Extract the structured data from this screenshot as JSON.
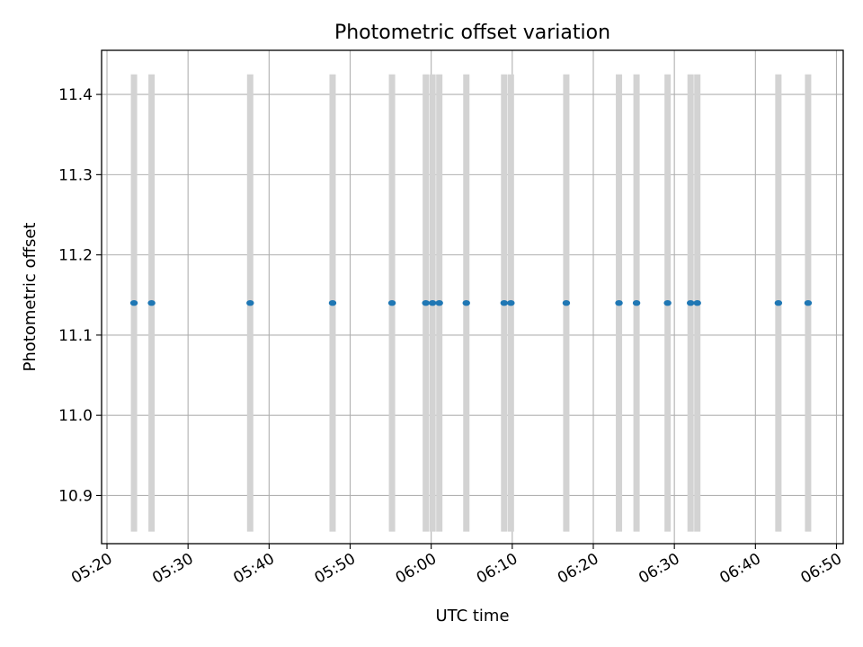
{
  "chart_data": {
    "type": "scatter",
    "title": "Photometric offset variation",
    "xlabel": "UTC time",
    "ylabel": "Photometric offset",
    "x_axis_type": "time",
    "xlim": [
      "05:19:20",
      "06:50:50"
    ],
    "ylim": [
      10.84,
      11.455
    ],
    "grid": true,
    "x_ticks": [
      "05:20",
      "05:30",
      "05:40",
      "05:50",
      "06:00",
      "06:10",
      "06:20",
      "06:30",
      "06:40",
      "06:50"
    ],
    "y_ticks": [
      10.9,
      11.0,
      11.1,
      11.2,
      11.3,
      11.4
    ],
    "error_bar_range": [
      10.855,
      11.425
    ],
    "error_bar_color": "#d3d3d3",
    "marker_color": "#1f77b4",
    "points": [
      {
        "x": "05:23:20",
        "y": 11.14
      },
      {
        "x": "05:25:30",
        "y": 11.14
      },
      {
        "x": "05:37:40",
        "y": 11.14
      },
      {
        "x": "05:47:50",
        "y": 11.14
      },
      {
        "x": "05:55:10",
        "y": 11.14
      },
      {
        "x": "05:59:20",
        "y": 11.14
      },
      {
        "x": "06:00:10",
        "y": 11.14
      },
      {
        "x": "06:01:00",
        "y": 11.14
      },
      {
        "x": "06:04:20",
        "y": 11.14
      },
      {
        "x": "06:09:00",
        "y": 11.14
      },
      {
        "x": "06:09:50",
        "y": 11.14
      },
      {
        "x": "06:16:40",
        "y": 11.14
      },
      {
        "x": "06:23:10",
        "y": 11.14
      },
      {
        "x": "06:25:20",
        "y": 11.14
      },
      {
        "x": "06:29:10",
        "y": 11.14
      },
      {
        "x": "06:32:00",
        "y": 11.14
      },
      {
        "x": "06:32:50",
        "y": 11.14
      },
      {
        "x": "06:42:50",
        "y": 11.14
      },
      {
        "x": "06:46:30",
        "y": 11.14
      }
    ]
  }
}
